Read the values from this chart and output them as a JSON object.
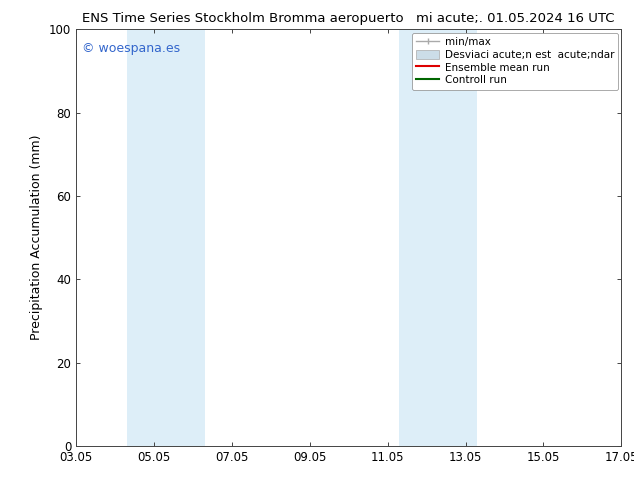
{
  "title_left": "ENS Time Series Stockholm Bromma aeropuerto",
  "title_right": "mi acute;. 01.05.2024 16 UTC",
  "ylabel": "Precipitation Accumulation (mm)",
  "ylim": [
    0,
    100
  ],
  "xtick_labels": [
    "03.05",
    "05.05",
    "07.05",
    "09.05",
    "11.05",
    "13.05",
    "15.05",
    "17.05"
  ],
  "xtick_positions": [
    0,
    2,
    4,
    6,
    8,
    10,
    12,
    14
  ],
  "shaded_bands": [
    {
      "x_start": 1.3,
      "x_end": 3.3
    },
    {
      "x_start": 8.3,
      "x_end": 10.3
    }
  ],
  "band_color": "#ddeef8",
  "background_color": "#ffffff",
  "watermark": "© woespana.es",
  "watermark_color": "#3366cc",
  "legend_minmax_label": "min/max",
  "legend_std_label": "Desviaci acute;n est  acute;ndar",
  "legend_ens_label": "Ensemble mean run",
  "legend_ctrl_label": "Controll run",
  "legend_minmax_color": "#aaaaaa",
  "legend_std_color": "#ccdde8",
  "legend_ens_color": "#dd0000",
  "legend_ctrl_color": "#006600",
  "title_fontsize": 9.5,
  "tick_fontsize": 8.5,
  "ylabel_fontsize": 9,
  "watermark_fontsize": 9,
  "legend_fontsize": 7.5
}
